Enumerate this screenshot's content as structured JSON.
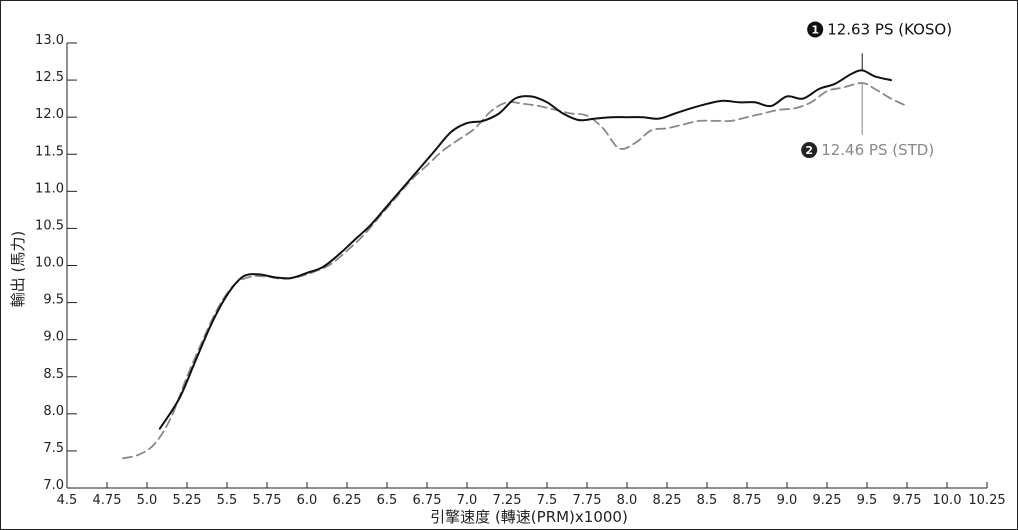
{
  "chart_data": {
    "type": "line",
    "title": "",
    "xlabel": "引擎速度 (轉速(PRM)x1000)",
    "ylabel": "輸出 (馬力)",
    "xlim": [
      4.5,
      10.25
    ],
    "ylim": [
      7.0,
      13.0
    ],
    "x_tick_labels": [
      "4.5",
      "4.75",
      "5.0",
      "5.25",
      "5.5",
      "5.75",
      "6.0",
      "6.25",
      "6.5",
      "6.75",
      "7.0",
      "7.25",
      "7.5",
      "7.75",
      "8.0",
      "8.25",
      "8.5",
      "8.75",
      "9.0",
      "9.25",
      "9.5",
      "9.75",
      "10.0",
      "10.25"
    ],
    "y_tick_labels": [
      "7.0",
      "7.5",
      "8.0",
      "8.5",
      "9.0",
      "9.5",
      "10.0",
      "10.5",
      "11.0",
      "11.5",
      "12.0",
      "12.5",
      "13.0"
    ],
    "grid": false,
    "series": [
      {
        "name": "KOSO",
        "color": "#111111",
        "style": "solid",
        "x": [
          5.08,
          5.2,
          5.3,
          5.4,
          5.5,
          5.6,
          5.7,
          5.8,
          5.9,
          6.0,
          6.1,
          6.2,
          6.3,
          6.4,
          6.5,
          6.6,
          6.7,
          6.8,
          6.9,
          7.0,
          7.1,
          7.2,
          7.3,
          7.4,
          7.5,
          7.6,
          7.7,
          7.8,
          7.9,
          8.0,
          8.1,
          8.2,
          8.3,
          8.4,
          8.5,
          8.6,
          8.7,
          8.8,
          8.9,
          9.0,
          9.1,
          9.2,
          9.3,
          9.4,
          9.47,
          9.55,
          9.65
        ],
        "y": [
          7.8,
          8.2,
          8.7,
          9.2,
          9.6,
          9.85,
          9.88,
          9.84,
          9.83,
          9.9,
          9.98,
          10.15,
          10.35,
          10.55,
          10.8,
          11.05,
          11.3,
          11.55,
          11.8,
          11.92,
          11.95,
          12.05,
          12.25,
          12.28,
          12.2,
          12.05,
          11.96,
          11.98,
          12.0,
          12.0,
          12.0,
          11.98,
          12.05,
          12.12,
          12.18,
          12.22,
          12.2,
          12.2,
          12.15,
          12.28,
          12.25,
          12.38,
          12.45,
          12.58,
          12.63,
          12.55,
          12.5
        ]
      },
      {
        "name": "STD",
        "color": "#888888",
        "style": "dashed",
        "x": [
          4.85,
          4.95,
          5.05,
          5.15,
          5.25,
          5.35,
          5.45,
          5.55,
          5.65,
          5.75,
          5.85,
          5.95,
          6.05,
          6.15,
          6.25,
          6.35,
          6.45,
          6.55,
          6.65,
          6.75,
          6.85,
          6.95,
          7.05,
          7.15,
          7.25,
          7.35,
          7.45,
          7.55,
          7.65,
          7.75,
          7.85,
          7.95,
          8.05,
          8.15,
          8.25,
          8.35,
          8.45,
          8.55,
          8.65,
          8.75,
          8.85,
          8.95,
          9.05,
          9.15,
          9.25,
          9.35,
          9.47,
          9.55,
          9.65,
          9.75
        ],
        "y": [
          7.4,
          7.45,
          7.6,
          7.95,
          8.5,
          9.0,
          9.45,
          9.75,
          9.85,
          9.85,
          9.82,
          9.85,
          9.92,
          10.02,
          10.2,
          10.4,
          10.65,
          10.9,
          11.15,
          11.35,
          11.55,
          11.7,
          11.85,
          12.08,
          12.2,
          12.18,
          12.15,
          12.1,
          12.05,
          12.02,
          11.85,
          11.58,
          11.65,
          11.82,
          11.85,
          11.9,
          11.95,
          11.95,
          11.95,
          12.0,
          12.05,
          12.1,
          12.12,
          12.2,
          12.35,
          12.4,
          12.46,
          12.38,
          12.25,
          12.15
        ]
      }
    ],
    "annotations": [
      {
        "marker": "1",
        "text": "12.63 PS (KOSO)",
        "x": 9.47,
        "y": 12.63,
        "color": "#111111"
      },
      {
        "marker": "2",
        "text": "12.46 PS (STD)",
        "x": 9.47,
        "y": 12.46,
        "color": "#888888"
      }
    ]
  }
}
